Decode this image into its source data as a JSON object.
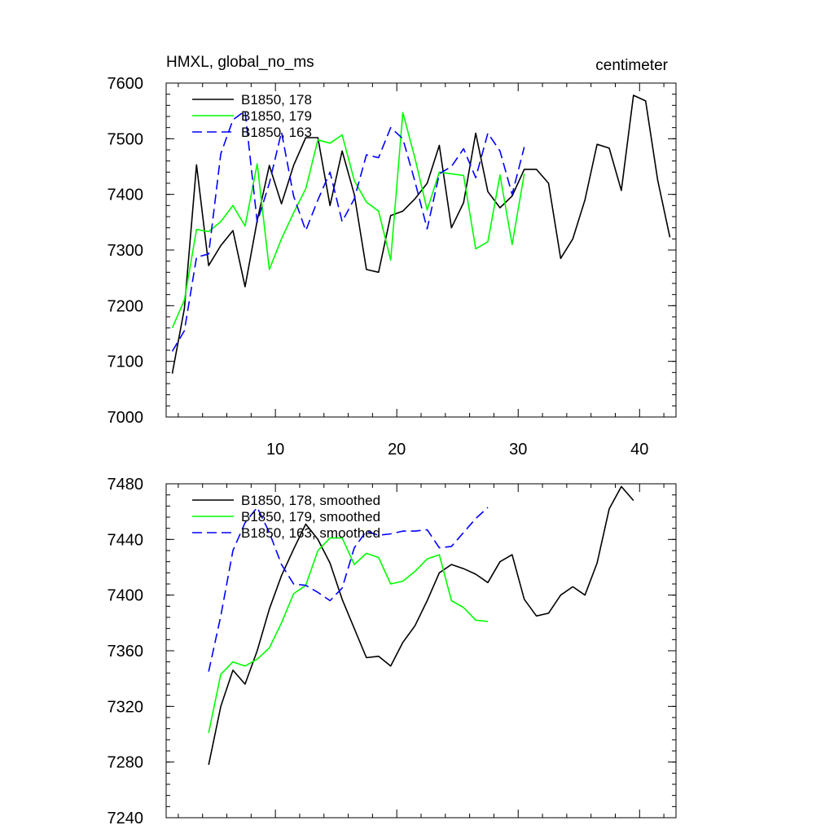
{
  "chart_data": [
    {
      "type": "line",
      "title_left": "HMXL, global_no_ms",
      "title_right": "centimeter",
      "xlim": [
        1,
        43
      ],
      "ylim": [
        7000,
        7600
      ],
      "xticks": [
        10,
        20,
        30,
        40
      ],
      "xtick_labels": [
        "10",
        "20",
        "30",
        "40"
      ],
      "yticks": [
        7000,
        7100,
        7200,
        7300,
        7400,
        7500,
        7600
      ],
      "ytick_labels": [
        "7000",
        "7100",
        "7200",
        "7300",
        "7400",
        "7500",
        "7600"
      ],
      "grid": false,
      "legend_position": "top-left",
      "series": [
        {
          "name": "B1850, 178",
          "color": "#000000",
          "dash": "solid",
          "x": [
            1.5,
            2.5,
            3.5,
            4.5,
            5.5,
            6.5,
            7.5,
            8.5,
            9.5,
            10.5,
            11.5,
            12.5,
            13.5,
            14.5,
            15.5,
            16.5,
            17.5,
            18.5,
            19.5,
            20.5,
            21.5,
            22.5,
            23.5,
            24.5,
            25.5,
            26.5,
            27.5,
            28.5,
            29.5,
            30.5,
            31.5,
            32.5,
            33.5,
            34.5,
            35.5,
            36.5,
            37.5,
            38.5,
            39.5,
            40.5,
            41.5,
            42.5
          ],
          "y": [
            7078,
            7195,
            7453,
            7272,
            7308,
            7335,
            7234,
            7353,
            7452,
            7383,
            7452,
            7502,
            7502,
            7380,
            7478,
            7400,
            7265,
            7260,
            7362,
            7370,
            7392,
            7420,
            7488,
            7340,
            7385,
            7510,
            7405,
            7376,
            7397,
            7445,
            7445,
            7420,
            7285,
            7320,
            7390,
            7490,
            7483,
            7407,
            7578,
            7568,
            7425,
            7323
          ]
        },
        {
          "name": "B1850, 179",
          "color": "#00ff00",
          "dash": "solid",
          "x": [
            1.5,
            2.5,
            3.5,
            4.5,
            5.5,
            6.5,
            7.5,
            8.5,
            9.5,
            10.5,
            11.5,
            12.5,
            13.5,
            14.5,
            15.5,
            16.5,
            17.5,
            18.5,
            19.5,
            20.5,
            21.5,
            22.5,
            23.5,
            24.5,
            25.5,
            26.5,
            27.5,
            28.5,
            29.5,
            30.5
          ],
          "y": [
            7160,
            7210,
            7337,
            7333,
            7351,
            7380,
            7343,
            7455,
            7265,
            7320,
            7367,
            7410,
            7498,
            7492,
            7507,
            7425,
            7386,
            7370,
            7282,
            7547,
            7465,
            7372,
            7440,
            7437,
            7434,
            7302,
            7315,
            7435,
            7310,
            7437
          ]
        },
        {
          "name": "B1850, 163",
          "color": "#0000ff",
          "dash": "dashed",
          "x": [
            1.5,
            2.5,
            3.5,
            4.5,
            5.5,
            6.5,
            7.5,
            8.5,
            9.5,
            10.5,
            11.5,
            12.5,
            13.5,
            14.5,
            15.5,
            16.5,
            17.5,
            18.5,
            19.5,
            20.5,
            21.5,
            22.5,
            23.5,
            24.5,
            25.5,
            26.5,
            27.5,
            28.5,
            29.5,
            30.5
          ],
          "y": [
            7118,
            7155,
            7287,
            7293,
            7473,
            7534,
            7550,
            7350,
            7420,
            7512,
            7397,
            7335,
            7390,
            7440,
            7351,
            7392,
            7471,
            7466,
            7520,
            7500,
            7423,
            7338,
            7437,
            7450,
            7482,
            7430,
            7510,
            7478,
            7400,
            7485
          ]
        }
      ]
    },
    {
      "type": "line",
      "xlim": [
        1,
        43
      ],
      "ylim": [
        7240,
        7480
      ],
      "xticks": [
        10,
        20,
        30,
        40
      ],
      "yticks": [
        7240,
        7280,
        7320,
        7360,
        7400,
        7440,
        7480
      ],
      "ytick_labels": [
        "7240",
        "7280",
        "7320",
        "7360",
        "7400",
        "7440",
        "7480"
      ],
      "grid": false,
      "legend_position": "top-left",
      "series": [
        {
          "name": "B1850, 178, smoothed",
          "color": "#000000",
          "dash": "solid",
          "x": [
            4.5,
            5.5,
            6.5,
            7.5,
            8.5,
            9.5,
            10.5,
            11.5,
            12.5,
            13.5,
            14.5,
            15.5,
            16.5,
            17.5,
            18.5,
            19.5,
            20.5,
            21.5,
            22.5,
            23.5,
            24.5,
            25.5,
            26.5,
            27.5,
            28.5,
            29.5,
            30.5,
            31.5,
            32.5,
            33.5,
            34.5,
            35.5,
            36.5,
            37.5,
            38.5,
            39.5
          ],
          "y": [
            7278,
            7320,
            7346,
            7336,
            7360,
            7390,
            7414,
            7433,
            7451,
            7440,
            7423,
            7397,
            7376,
            7355,
            7356,
            7349,
            7366,
            7378,
            7396,
            7416,
            7422,
            7419,
            7415,
            7409,
            7424,
            7429,
            7397,
            7385,
            7387,
            7400,
            7406,
            7400,
            7423,
            7462,
            7478,
            7468
          ]
        },
        {
          "name": "B1850, 179, smoothed",
          "color": "#00ff00",
          "dash": "solid",
          "x": [
            4.5,
            5.5,
            6.5,
            7.5,
            8.5,
            9.5,
            10.5,
            11.5,
            12.5,
            13.5,
            14.5,
            15.5,
            16.5,
            17.5,
            18.5,
            19.5,
            20.5,
            21.5,
            22.5,
            23.5,
            24.5,
            25.5,
            26.5,
            27.5
          ],
          "y": [
            7301,
            7343,
            7352,
            7349,
            7354,
            7362,
            7380,
            7401,
            7407,
            7432,
            7441,
            7441,
            7422,
            7430,
            7427,
            7408,
            7410,
            7417,
            7426,
            7429,
            7396,
            7391,
            7382,
            7381
          ]
        },
        {
          "name": "B1850, 163, smoothed",
          "color": "#0000ff",
          "dash": "dashed",
          "x": [
            4.5,
            5.5,
            6.5,
            7.5,
            8.5,
            9.5,
            10.5,
            11.5,
            12.5,
            13.5,
            14.5,
            15.5,
            16.5,
            17.5,
            18.5,
            19.5,
            20.5,
            21.5,
            22.5,
            23.5,
            24.5,
            25.5,
            26.5,
            27.5
          ],
          "y": [
            7345,
            7385,
            7432,
            7452,
            7463,
            7445,
            7422,
            7408,
            7407,
            7402,
            7396,
            7405,
            7434,
            7446,
            7443,
            7444,
            7446,
            7446,
            7447,
            7434,
            7435,
            7445,
            7455,
            7463
          ]
        }
      ]
    }
  ]
}
